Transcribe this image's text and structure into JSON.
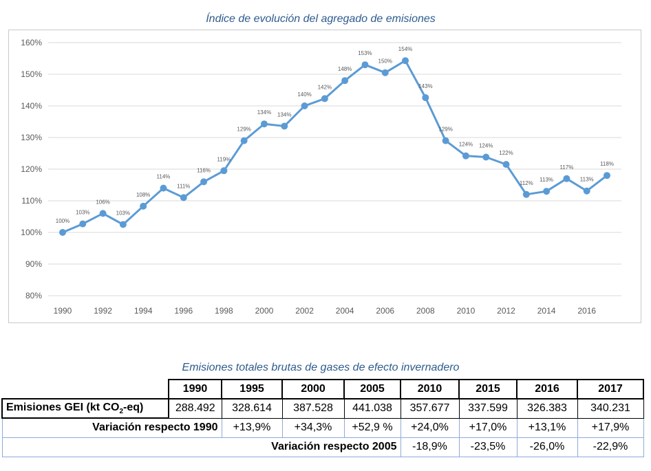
{
  "chart_data": {
    "type": "line",
    "title": "Índice de evolución del agregado de emisiones",
    "x": [
      1990,
      1991,
      1992,
      1993,
      1994,
      1995,
      1996,
      1997,
      1998,
      1999,
      2000,
      2001,
      2002,
      2003,
      2004,
      2005,
      2006,
      2007,
      2008,
      2009,
      2010,
      2011,
      2012,
      2013,
      2014,
      2015,
      2016,
      2017
    ],
    "values": [
      100,
      102.7,
      106,
      102.5,
      108.3,
      114,
      111,
      116,
      119.5,
      129,
      134.3,
      133.6,
      140,
      142.3,
      148,
      153,
      150.5,
      154.3,
      142.6,
      129,
      124.2,
      123.8,
      121.5,
      112,
      113,
      117,
      113.1,
      118
    ],
    "labels": [
      "100%",
      "103%",
      "106%",
      "103%",
      "108%",
      "114%",
      "111%",
      "116%",
      "119%",
      "129%",
      "134%",
      "134%",
      "140%",
      "142%",
      "148%",
      "153%",
      "150%",
      "154%",
      "143%",
      "129%",
      "124%",
      "124%",
      "122%",
      "112%",
      "113%",
      "117%",
      "113%",
      "118%"
    ],
    "series_name": "Índice de evolución",
    "xticks": [
      "1990",
      "1992",
      "1994",
      "1996",
      "1998",
      "2000",
      "2002",
      "2004",
      "2006",
      "2008",
      "2010",
      "2012",
      "2014",
      "2016"
    ],
    "xtick_values": [
      1990,
      1992,
      1994,
      1996,
      1998,
      2000,
      2002,
      2004,
      2006,
      2008,
      2010,
      2012,
      2014,
      2016
    ],
    "yticks": [
      "80%",
      "90%",
      "100%",
      "110%",
      "120%",
      "130%",
      "140%",
      "150%",
      "160%"
    ],
    "ytick_values": [
      80,
      90,
      100,
      110,
      120,
      130,
      140,
      150,
      160
    ],
    "ylim": [
      80,
      160
    ],
    "xlabel": "",
    "ylabel": "",
    "grid": true,
    "line_color": "#5b9bd5",
    "grid_color": "#d9d9d9",
    "text_color": "#595959"
  },
  "table": {
    "title": "Emisiones totales brutas de gases de efecto invernadero",
    "years": [
      "1990",
      "1995",
      "2000",
      "2005",
      "2010",
      "2015",
      "2016",
      "2017"
    ],
    "emissions_label_main": "Emisiones GEI (kt CO",
    "emissions_label_sub": "2",
    "emissions_label_end": "-eq)",
    "emissions": [
      "288.492",
      "328.614",
      "387.528",
      "441.038",
      "357.677",
      "337.599",
      "326.383",
      "340.231"
    ],
    "var1990_label": "Variación respecto 1990",
    "var1990": [
      "+13,9%",
      "+34,3%",
      "+52,9 %",
      "+24,0%",
      "+17,0%",
      "+13,1%",
      "+17,9%"
    ],
    "var2005_label": "Variación respecto 2005",
    "var2005": [
      "-18,9%",
      "-23,5%",
      "-26,0%",
      "-22,9%"
    ]
  }
}
